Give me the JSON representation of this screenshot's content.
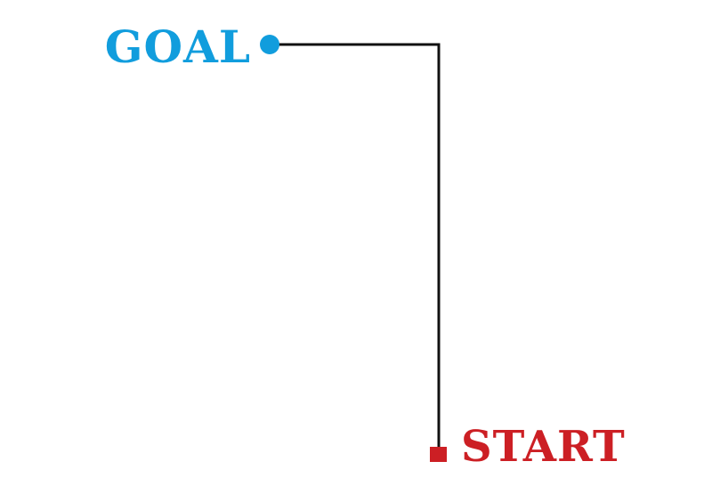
{
  "labels": {
    "goal": "GOAL",
    "start": "START"
  },
  "colors": {
    "goal": "#119ddd",
    "start": "#cc1f24",
    "path": "#111111",
    "background": "#ffffff"
  },
  "icons": {
    "goal_marker": "circle-dot-icon",
    "start_marker": "square-icon"
  }
}
